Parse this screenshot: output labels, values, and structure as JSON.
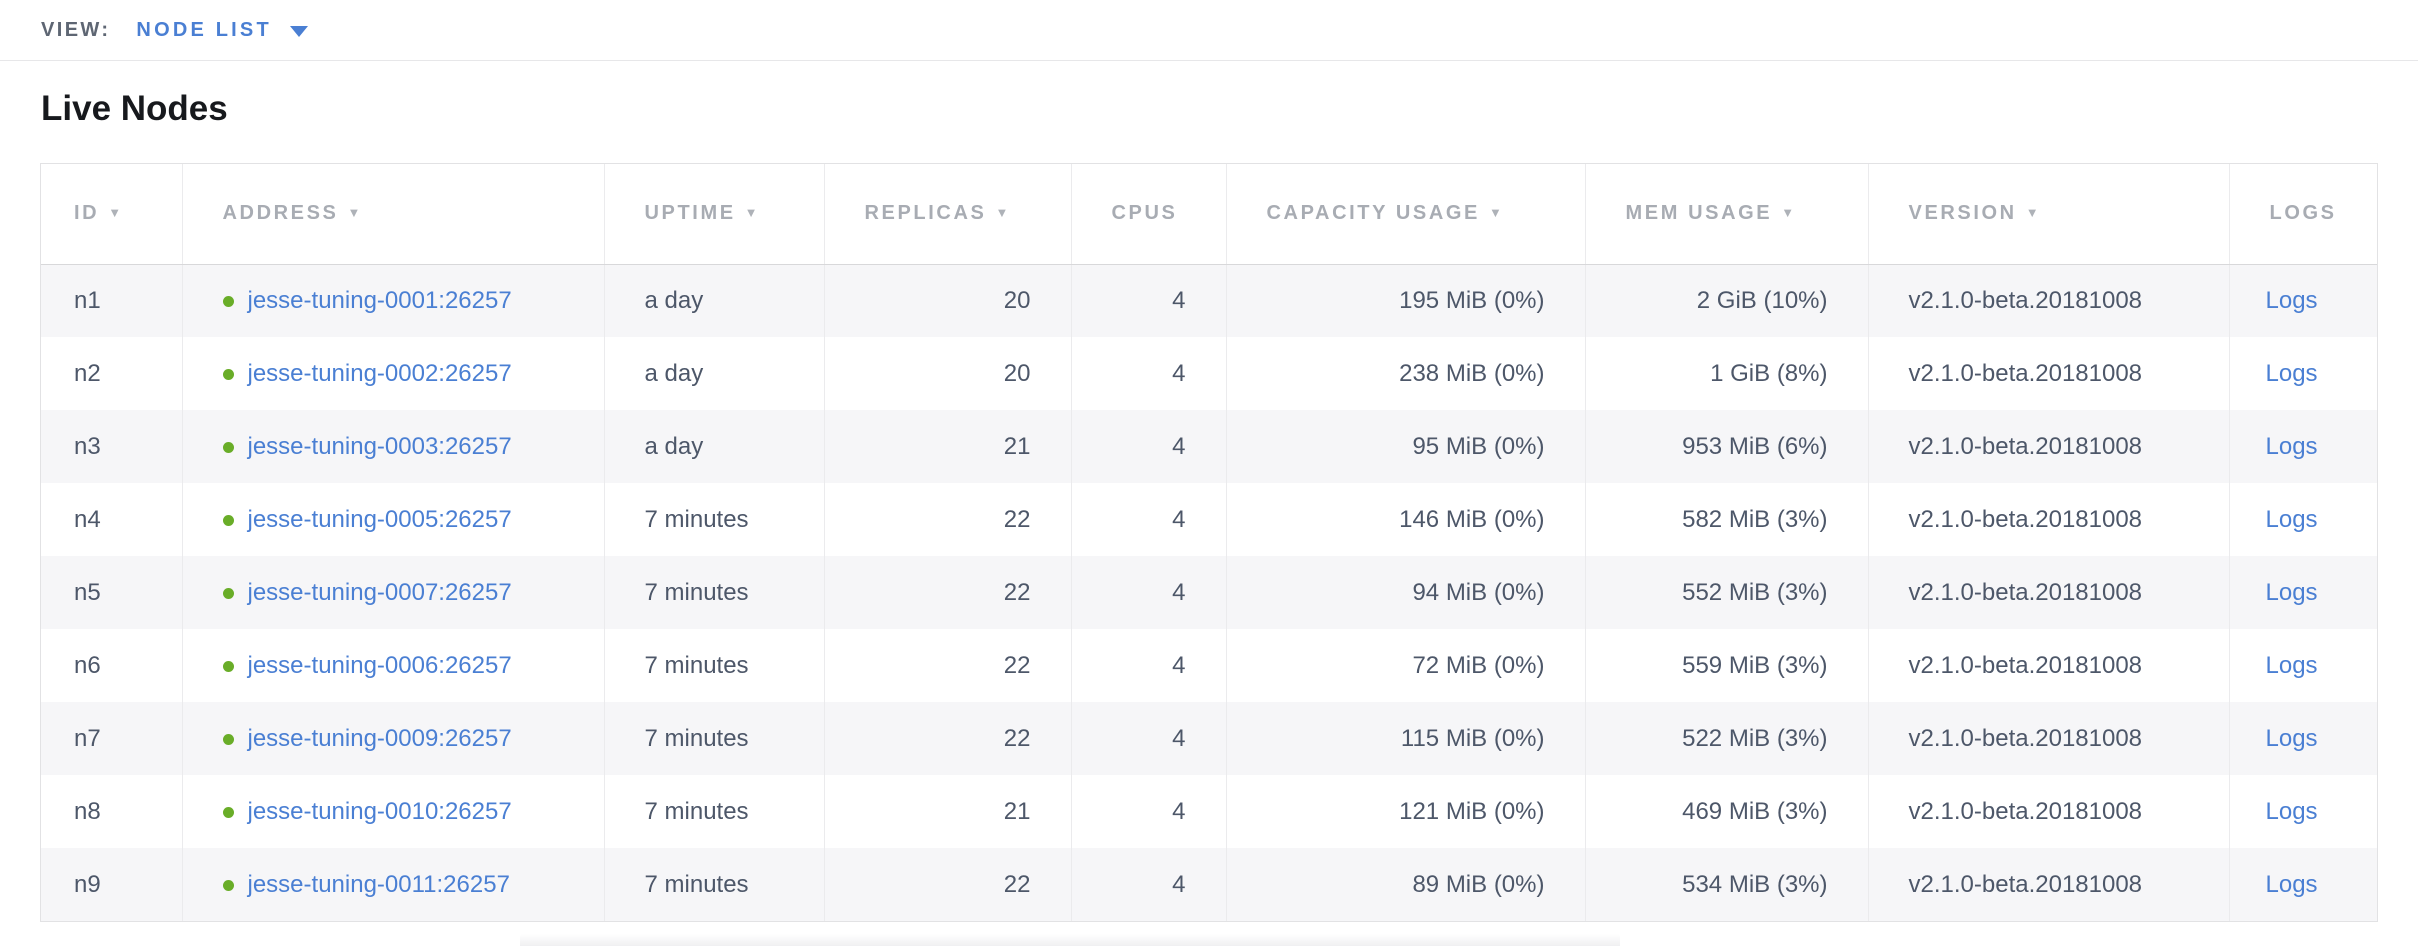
{
  "view_bar": {
    "label": "VIEW:",
    "selected": "NODE LIST"
  },
  "page": {
    "title": "Live Nodes"
  },
  "colors": {
    "accent_blue": "#4a7fd3",
    "live_green": "#69ad28",
    "header_gray": "#a8acb3",
    "cell_text": "#4d5769"
  },
  "table": {
    "columns": [
      {
        "key": "id",
        "label": "ID",
        "sortable": true,
        "align": "left"
      },
      {
        "key": "address",
        "label": "ADDRESS",
        "sortable": true,
        "align": "left"
      },
      {
        "key": "uptime",
        "label": "UPTIME",
        "sortable": true,
        "align": "left"
      },
      {
        "key": "replicas",
        "label": "REPLICAS",
        "sortable": true,
        "align": "right"
      },
      {
        "key": "cpus",
        "label": "CPUS",
        "sortable": false,
        "align": "right"
      },
      {
        "key": "capacity",
        "label": "CAPACITY USAGE",
        "sortable": true,
        "align": "right"
      },
      {
        "key": "mem",
        "label": "MEM USAGE",
        "sortable": true,
        "align": "right"
      },
      {
        "key": "version",
        "label": "VERSION",
        "sortable": true,
        "align": "left"
      },
      {
        "key": "logs",
        "label": "LOGS",
        "sortable": false,
        "align": "left"
      }
    ],
    "sort_arrow_glyph": "▼",
    "rows": [
      {
        "id": "n1",
        "address": "jesse-tuning-0001:26257",
        "uptime": "a day",
        "replicas": "20",
        "cpus": "4",
        "capacity": "195 MiB (0%)",
        "mem": "2 GiB (10%)",
        "version": "v2.1.0-beta.20181008",
        "logs": "Logs"
      },
      {
        "id": "n2",
        "address": "jesse-tuning-0002:26257",
        "uptime": "a day",
        "replicas": "20",
        "cpus": "4",
        "capacity": "238 MiB (0%)",
        "mem": "1 GiB (8%)",
        "version": "v2.1.0-beta.20181008",
        "logs": "Logs"
      },
      {
        "id": "n3",
        "address": "jesse-tuning-0003:26257",
        "uptime": "a day",
        "replicas": "21",
        "cpus": "4",
        "capacity": "95 MiB (0%)",
        "mem": "953 MiB (6%)",
        "version": "v2.1.0-beta.20181008",
        "logs": "Logs"
      },
      {
        "id": "n4",
        "address": "jesse-tuning-0005:26257",
        "uptime": "7 minutes",
        "replicas": "22",
        "cpus": "4",
        "capacity": "146 MiB (0%)",
        "mem": "582 MiB (3%)",
        "version": "v2.1.0-beta.20181008",
        "logs": "Logs"
      },
      {
        "id": "n5",
        "address": "jesse-tuning-0007:26257",
        "uptime": "7 minutes",
        "replicas": "22",
        "cpus": "4",
        "capacity": "94 MiB (0%)",
        "mem": "552 MiB (3%)",
        "version": "v2.1.0-beta.20181008",
        "logs": "Logs"
      },
      {
        "id": "n6",
        "address": "jesse-tuning-0006:26257",
        "uptime": "7 minutes",
        "replicas": "22",
        "cpus": "4",
        "capacity": "72 MiB (0%)",
        "mem": "559 MiB (3%)",
        "version": "v2.1.0-beta.20181008",
        "logs": "Logs"
      },
      {
        "id": "n7",
        "address": "jesse-tuning-0009:26257",
        "uptime": "7 minutes",
        "replicas": "22",
        "cpus": "4",
        "capacity": "115 MiB (0%)",
        "mem": "522 MiB (3%)",
        "version": "v2.1.0-beta.20181008",
        "logs": "Logs"
      },
      {
        "id": "n8",
        "address": "jesse-tuning-0010:26257",
        "uptime": "7 minutes",
        "replicas": "21",
        "cpus": "4",
        "capacity": "121 MiB (0%)",
        "mem": "469 MiB (3%)",
        "version": "v2.1.0-beta.20181008",
        "logs": "Logs"
      },
      {
        "id": "n9",
        "address": "jesse-tuning-0011:26257",
        "uptime": "7 minutes",
        "replicas": "22",
        "cpus": "4",
        "capacity": "89 MiB (0%)",
        "mem": "534 MiB (3%)",
        "version": "v2.1.0-beta.20181008",
        "logs": "Logs"
      }
    ]
  }
}
